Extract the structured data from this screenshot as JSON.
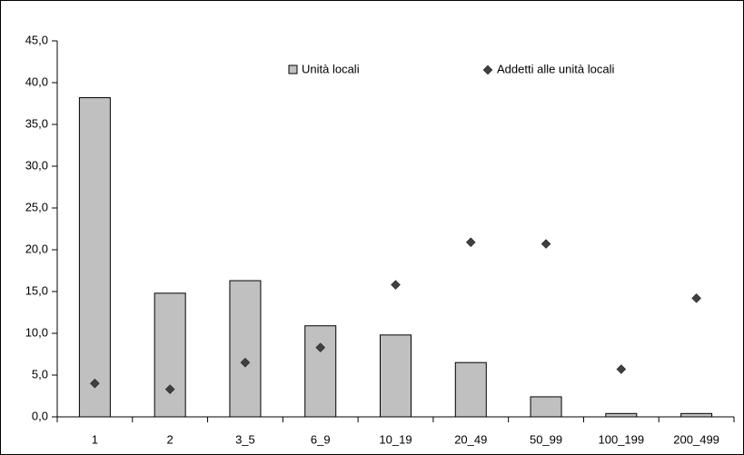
{
  "chart_data": {
    "type": "bar",
    "categories": [
      "1",
      "2",
      "3_5",
      "6_9",
      "10_19",
      "20_49",
      "50_99",
      "100_199",
      "200_499"
    ],
    "series": [
      {
        "name": "Unità locali",
        "type": "bar",
        "color": "#c0c0c0",
        "values": [
          38.2,
          14.8,
          16.3,
          10.9,
          9.8,
          6.5,
          2.4,
          0.4,
          0.4
        ]
      },
      {
        "name": "Addetti alle unità locali",
        "type": "scatter",
        "color": "#404040",
        "values": [
          4.0,
          3.3,
          6.5,
          8.3,
          15.8,
          20.9,
          20.7,
          5.7,
          14.2
        ]
      }
    ],
    "ylim": [
      0,
      45
    ],
    "yticks": [
      {
        "value": 0,
        "label": "0,0"
      },
      {
        "value": 5,
        "label": "5,0"
      },
      {
        "value": 10,
        "label": "10,0"
      },
      {
        "value": 15,
        "label": "15,0"
      },
      {
        "value": 20,
        "label": "20,0"
      },
      {
        "value": 25,
        "label": "25,0"
      },
      {
        "value": 30,
        "label": "30,0"
      },
      {
        "value": 35,
        "label": "35,0"
      },
      {
        "value": 40,
        "label": "40,0"
      },
      {
        "value": 45,
        "label": "45,0"
      }
    ],
    "grid": false,
    "legend": "top"
  }
}
